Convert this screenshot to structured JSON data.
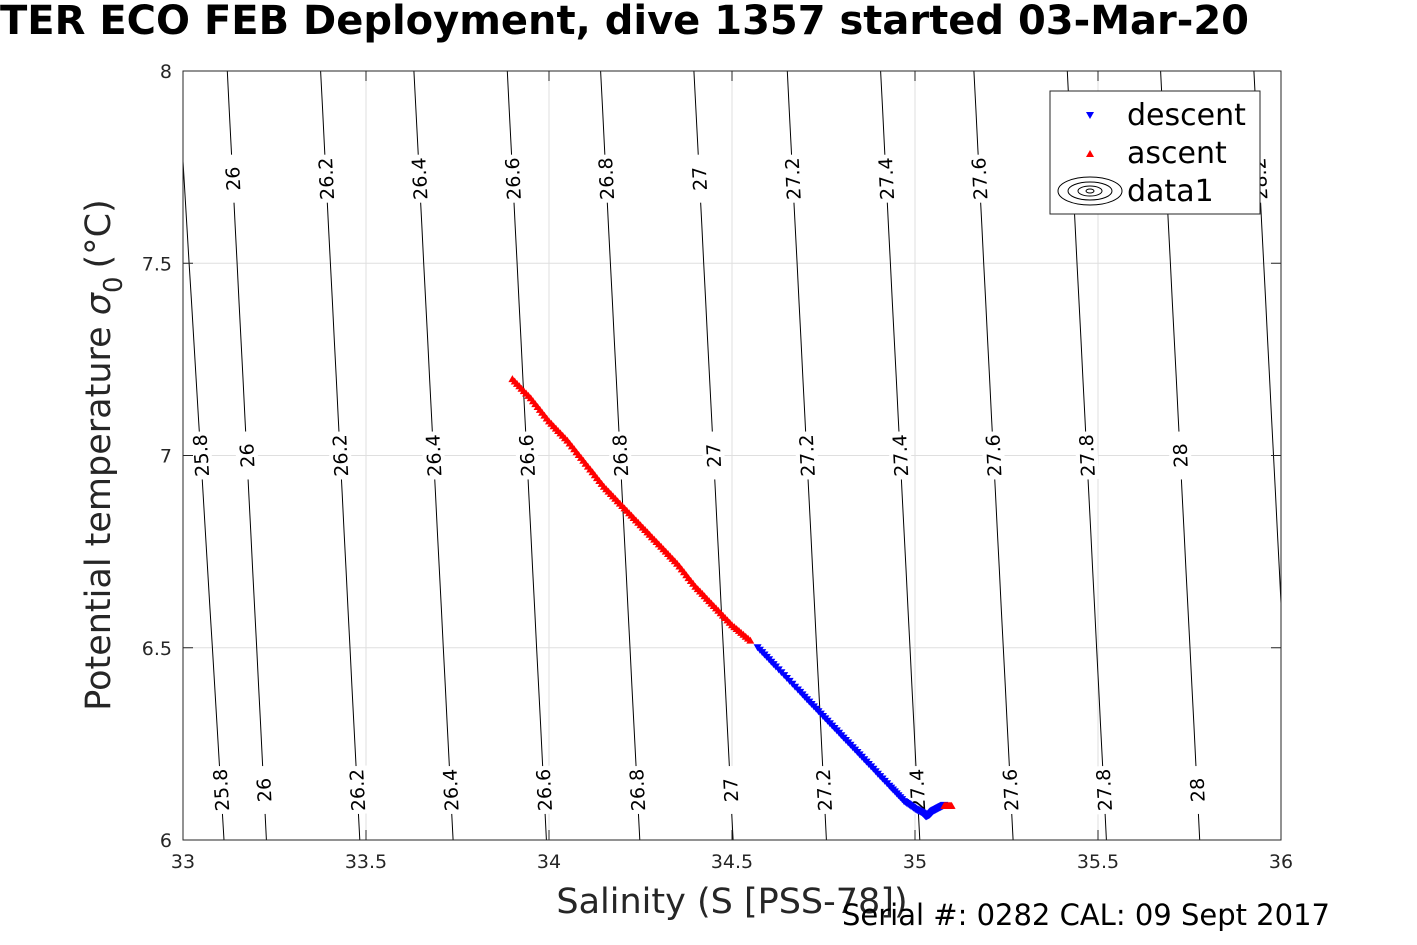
{
  "chart_data": {
    "type": "scatter",
    "title": "TER ECO FEB Deployment, dive 1357 started 03-Mar-20",
    "xlabel": "Salinity (S [PSS-78])",
    "ylabel": "Potential temperature",
    "ylabel_symbol": "σ",
    "ylabel_subscript": "0",
    "ylabel_unit": "(°C)",
    "xlim": [
      33,
      36
    ],
    "ylim": [
      6,
      8
    ],
    "x_ticks": [
      "33",
      "33.5",
      "34",
      "34.5",
      "35",
      "35.5",
      "36"
    ],
    "y_ticks": [
      "6",
      "6.5",
      "7",
      "7.5",
      "8"
    ],
    "grid": true,
    "legend_position": "top-right",
    "series": [
      {
        "name": "descent",
        "marker": "triangle-down",
        "color": "#0000ff",
        "x": [
          34.57,
          34.62,
          34.68,
          34.73,
          34.78,
          34.83,
          34.88,
          34.93,
          34.97,
          35.0,
          35.02,
          35.03,
          35.04,
          35.05,
          35.06,
          35.07,
          35.08
        ],
        "y": [
          6.5,
          6.45,
          6.39,
          6.34,
          6.29,
          6.24,
          6.19,
          6.14,
          6.1,
          6.08,
          6.07,
          6.06,
          6.065,
          6.075,
          6.08,
          6.085,
          6.09
        ]
      },
      {
        "name": "ascent",
        "marker": "triangle-up",
        "color": "#ff0000",
        "x": [
          33.9,
          33.95,
          34.0,
          34.05,
          34.1,
          34.15,
          34.2,
          34.25,
          34.3,
          34.35,
          34.4,
          34.45,
          34.5,
          34.55,
          35.08,
          35.1
        ],
        "y": [
          7.2,
          7.15,
          7.09,
          7.04,
          6.98,
          6.92,
          6.87,
          6.82,
          6.77,
          6.72,
          6.66,
          6.61,
          6.56,
          6.52,
          6.09,
          6.09
        ]
      },
      {
        "name": "data1",
        "marker": "contour",
        "color": "#000000"
      }
    ],
    "contours": [
      {
        "label": "25.8",
        "x_top": 32.985,
        "slope": 0.0635
      },
      {
        "label": "26",
        "x_top": 33.121,
        "slope": 0.0535
      },
      {
        "label": "26.2",
        "x_top": 33.376,
        "slope": 0.0535
      },
      {
        "label": "26.4",
        "x_top": 33.631,
        "slope": 0.0535
      },
      {
        "label": "26.6",
        "x_top": 33.886,
        "slope": 0.0535
      },
      {
        "label": "26.8",
        "x_top": 34.141,
        "slope": 0.0535
      },
      {
        "label": "27",
        "x_top": 34.396,
        "slope": 0.0535
      },
      {
        "label": "27.2",
        "x_top": 34.651,
        "slope": 0.0535
      },
      {
        "label": "27.4",
        "x_top": 34.906,
        "slope": 0.0535
      },
      {
        "label": "27.6",
        "x_top": 35.161,
        "slope": 0.0535
      },
      {
        "label": "27.8",
        "x_top": 35.416,
        "slope": 0.0535
      },
      {
        "label": "28",
        "x_top": 35.671,
        "slope": 0.0535
      },
      {
        "label": "28.2",
        "x_top": 35.926,
        "slope": 0.0535
      }
    ]
  },
  "footer": {
    "serial_text": "Serial #: 0282  CAL: 09 Sept 2017"
  }
}
